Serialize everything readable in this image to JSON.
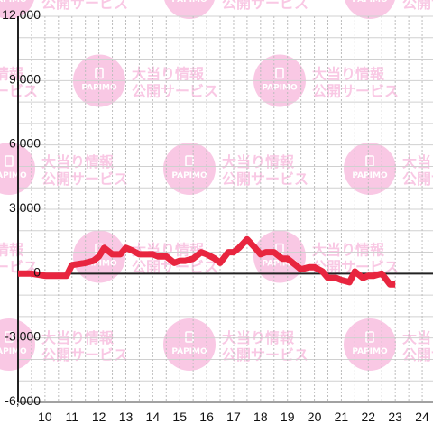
{
  "watermark": {
    "line1": "大当り情報",
    "line2": "公開サービス",
    "logo_text": "PAPIMO",
    "color": "#f7b6dc"
  },
  "chart_data": {
    "type": "line",
    "x_ticks": [
      "10",
      "11",
      "12",
      "13",
      "14",
      "15",
      "16",
      "17",
      "18",
      "19",
      "20",
      "21",
      "22",
      "23",
      "24"
    ],
    "y_ticks": [
      "12,000",
      "9,000",
      "6,000",
      "3,000",
      "0",
      "-3,000",
      "-6,000"
    ],
    "xlim": [
      9.0,
      24.4
    ],
    "ylim": [
      -6000,
      12000
    ],
    "grid": true,
    "line_color": "#e8253f",
    "series": [
      {
        "x": [
          9.0,
          9.5,
          10.0,
          10.5,
          10.8,
          11.0,
          11.5,
          11.8,
          12.0,
          12.2,
          12.5,
          12.8,
          13.0,
          13.2,
          13.5,
          13.8,
          14.0,
          14.2,
          14.5,
          14.8,
          15.0,
          15.2,
          15.5,
          15.8,
          16.0,
          16.3,
          16.5,
          16.8,
          17.0,
          17.2,
          17.5,
          17.8,
          18.0,
          18.2,
          18.5,
          18.8,
          19.0,
          19.3,
          19.5,
          19.8,
          20.0,
          20.3,
          20.5,
          20.8,
          21.0,
          21.3,
          21.5,
          21.8,
          22.0,
          22.2,
          22.5,
          22.8,
          23.0
        ],
        "y": [
          0,
          0,
          -100,
          -100,
          -100,
          400,
          500,
          600,
          800,
          1200,
          900,
          900,
          1200,
          1100,
          900,
          900,
          900,
          800,
          800,
          500,
          600,
          600,
          700,
          1000,
          900,
          700,
          500,
          1000,
          1000,
          1200,
          1600,
          1200,
          900,
          1000,
          1000,
          700,
          700,
          400,
          200,
          300,
          300,
          100,
          -200,
          -200,
          -300,
          -400,
          100,
          -200,
          -100,
          -100,
          0,
          -500,
          -500
        ]
      }
    ]
  }
}
